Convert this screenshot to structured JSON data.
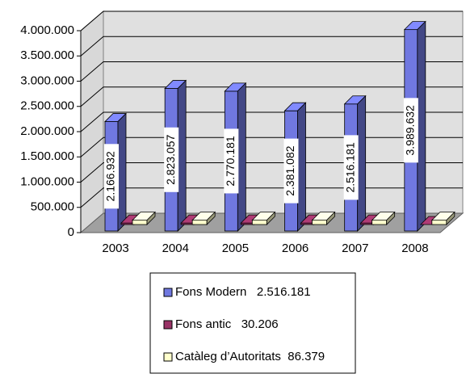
{
  "chart_data": {
    "type": "bar3d",
    "categories": [
      "2003",
      "2004",
      "2005",
      "2006",
      "2007",
      "2008"
    ],
    "series": [
      {
        "name": "Fons Modern   2.516.181",
        "color": "#7078e0",
        "values": [
          2166932,
          2823057,
          2770181,
          2381082,
          2516181,
          3989632
        ],
        "value_labels": [
          "2.166.932",
          "2.823.057",
          "2.770.181",
          "2.381.082",
          "2.516.181",
          "3.989.632"
        ]
      },
      {
        "name": "Fons antic   30.206",
        "color": "#993366",
        "values": [
          30000,
          30000,
          30000,
          30000,
          30206,
          0
        ]
      },
      {
        "name": "Catàleg d’Autoritats  86.379",
        "color": "#ffffcc",
        "values": [
          86000,
          86000,
          86000,
          86000,
          86379,
          86000
        ]
      }
    ],
    "ylim": [
      0,
      4000000
    ],
    "yticks": [
      0,
      {
        "value": 500000,
        "label": "500.000"
      },
      {
        "value": 1000000,
        "label": "1.000.000"
      },
      {
        "value": 1500000,
        "label": "1.500.000"
      },
      {
        "value": 2000000,
        "label": "2.000.000"
      },
      {
        "value": 2500000,
        "label": "2.500.000"
      },
      {
        "value": 3000000,
        "label": "3.000.000"
      },
      {
        "value": 3500000,
        "label": "3.500.000"
      },
      {
        "value": 4000000,
        "label": "4.000.000"
      }
    ],
    "grid": true
  }
}
